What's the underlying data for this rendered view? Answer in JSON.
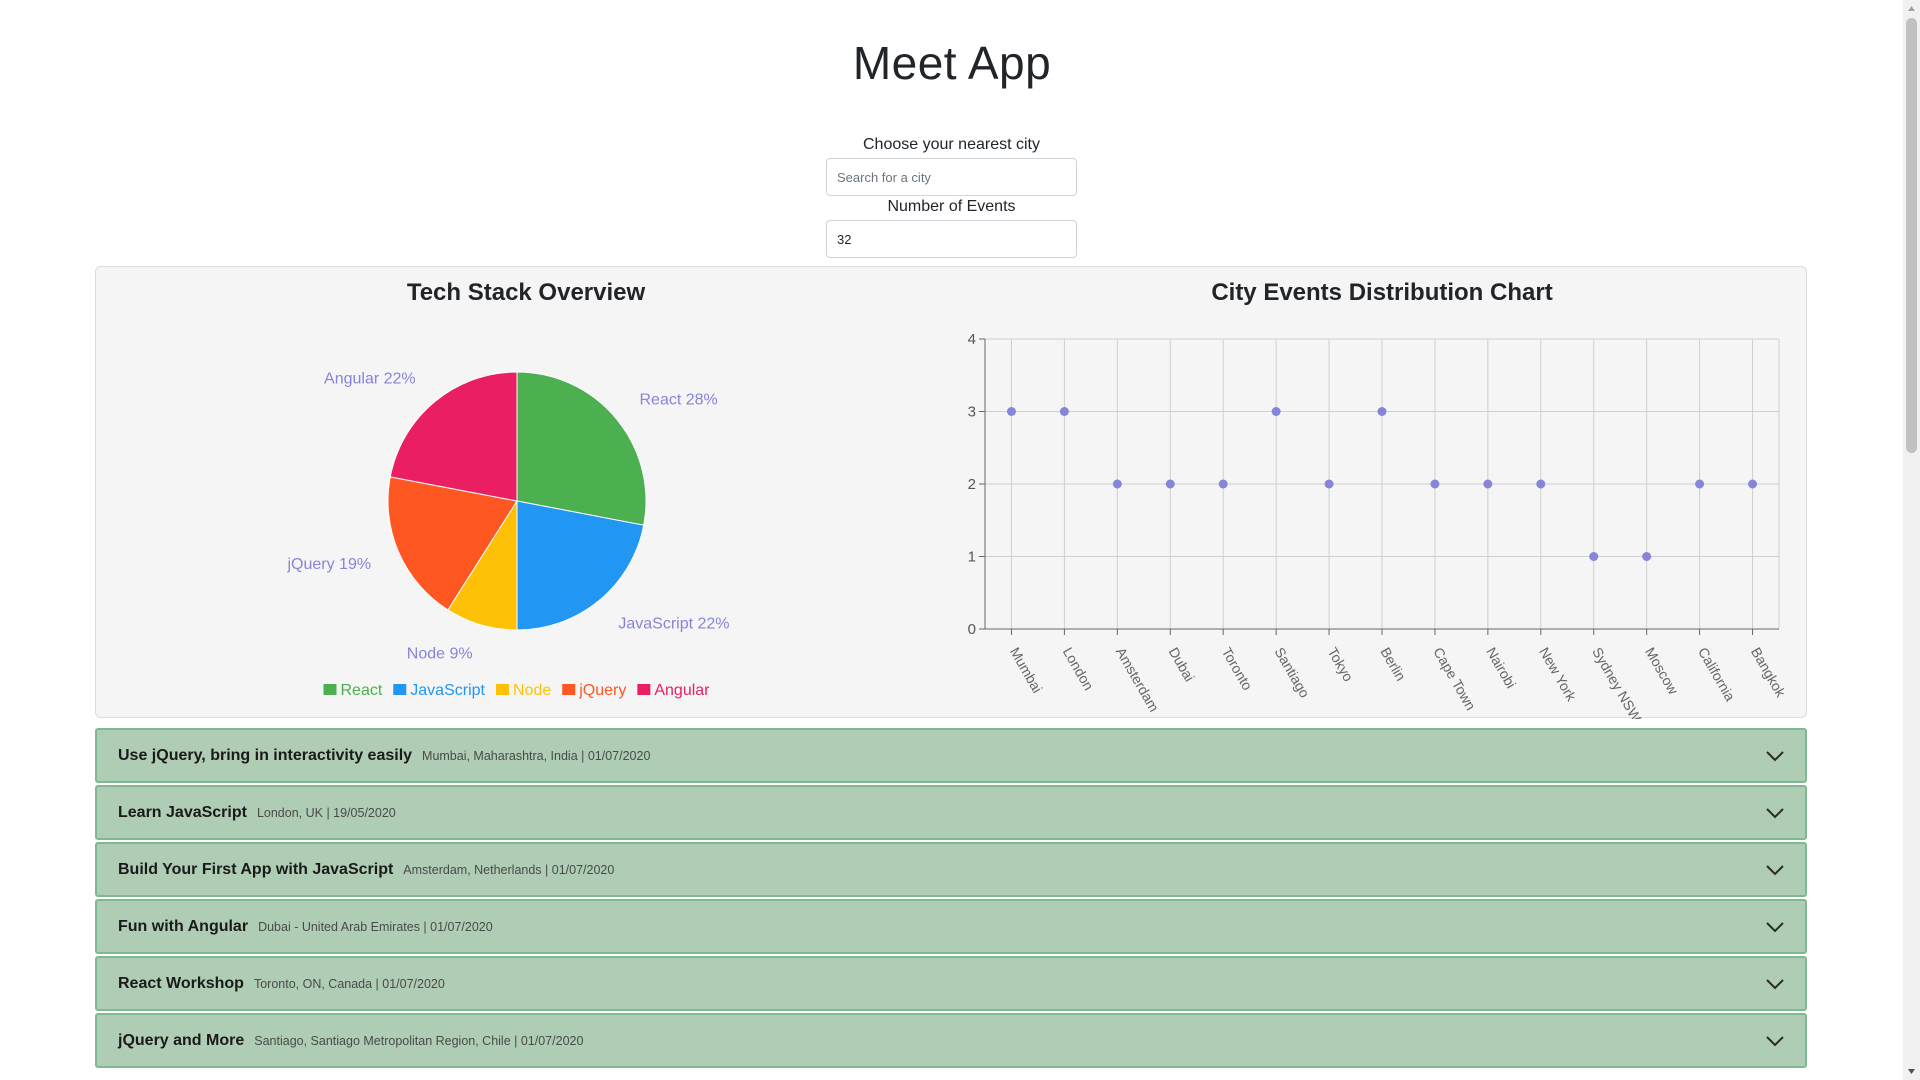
{
  "app": {
    "title": "Meet App"
  },
  "search": {
    "label": "Choose your nearest city",
    "placeholder": "Search for a city",
    "value": ""
  },
  "number_events": {
    "label": "Number of Events",
    "value": "32"
  },
  "colors": {
    "accent_text": "#8884d8",
    "event_bg": "#aecdb4",
    "event_border": "#7fb98f",
    "panel_bg": "#f5f5f5"
  },
  "chart_data": [
    {
      "type": "pie",
      "title": "Tech Stack Overview",
      "categories": [
        "React",
        "JavaScript",
        "Node",
        "jQuery",
        "Angular"
      ],
      "values": [
        28,
        22,
        9,
        19,
        22
      ],
      "labels": [
        "React 28%",
        "JavaScript 22%",
        "Node 9%",
        "jQuery 19%",
        "Angular 22%"
      ],
      "colors": [
        "#4caf50",
        "#2196f3",
        "#ffc107",
        "#ff5722",
        "#e91e63"
      ],
      "legend": "bottom"
    },
    {
      "type": "scatter",
      "title": "City Events Distribution Chart",
      "x": [
        "Mumbai",
        "London",
        "Amsterdam",
        "Dubai",
        "Toronto",
        "Santiago",
        "Tokyo",
        "Berlin",
        "Cape Town",
        "Nairobi",
        "New York",
        "Sydney NSW",
        "Moscow",
        "California",
        "Bangkok"
      ],
      "y": [
        3,
        3,
        2,
        2,
        2,
        3,
        2,
        3,
        2,
        2,
        2,
        1,
        1,
        2,
        2
      ],
      "yticks": [
        "0",
        "1",
        "2",
        "3",
        "4"
      ],
      "ylim": [
        0,
        4
      ],
      "grid": true,
      "color": "#8884d8"
    }
  ],
  "events": [
    {
      "name": "Use jQuery, bring in interactivity easily",
      "meta": "Mumbai, Maharashtra, India | 01/07/2020"
    },
    {
      "name": "Learn JavaScript",
      "meta": "London, UK | 19/05/2020"
    },
    {
      "name": "Build Your First App with JavaScript",
      "meta": "Amsterdam, Netherlands | 01/07/2020"
    },
    {
      "name": "Fun with Angular",
      "meta": "Dubai - United Arab Emirates | 01/07/2020"
    },
    {
      "name": "React Workshop",
      "meta": "Toronto, ON, Canada | 01/07/2020"
    },
    {
      "name": "jQuery and More",
      "meta": "Santiago, Santiago Metropolitan Region, Chile | 01/07/2020"
    }
  ]
}
